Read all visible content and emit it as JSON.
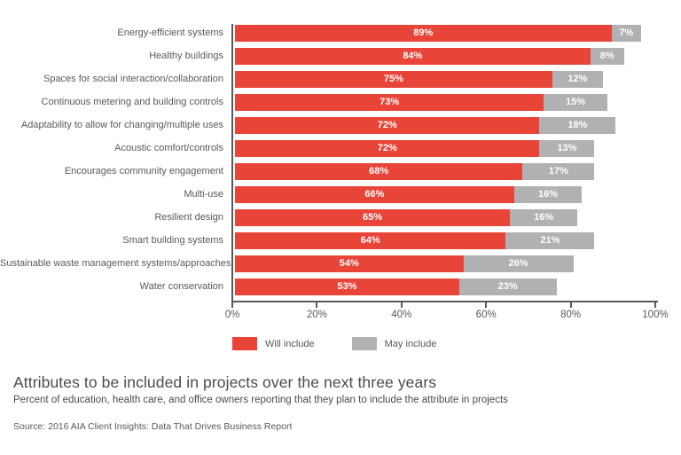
{
  "chart_data": {
    "type": "bar",
    "orientation": "horizontal",
    "stacked": true,
    "title": "Attributes to be included in projects over the next three years",
    "subtitle": "Percent of education, health care, and office owners reporting that they plan to include the attribute in projects",
    "source": "Source: 2016 AIA Client Insights: Data That Drives Business Report",
    "categories": [
      "Energy-efficient systems",
      "Healthy buildings",
      "Spaces for social interaction/collaboration",
      "Continuous metering and building controls",
      "Adaptability to allow for changing/multiple uses",
      "Acoustic comfort/controls",
      "Encourages community engagement",
      "Multi-use",
      "Resilient design",
      "Smart building systems",
      "Sustainable waste management systems/approaches",
      "Water conservation"
    ],
    "series": [
      {
        "name": "Will include",
        "color": "#E94438",
        "values": [
          89,
          84,
          75,
          73,
          72,
          72,
          68,
          66,
          65,
          64,
          54,
          53
        ]
      },
      {
        "name": "May include",
        "color": "#B1B1B3",
        "values": [
          7,
          8,
          12,
          15,
          18,
          13,
          17,
          16,
          16,
          21,
          26,
          23
        ]
      }
    ],
    "value_suffix": "%",
    "xlim": [
      0,
      100
    ],
    "x_ticks": [
      "0%",
      "20%",
      "40%",
      "60%",
      "80%",
      "100%"
    ],
    "x_tick_positions": [
      0,
      20,
      40,
      60,
      80,
      100
    ],
    "grid": false,
    "legend_position": "bottom",
    "axis_color": "#58595B",
    "bar_label_color": "#ffffff"
  }
}
